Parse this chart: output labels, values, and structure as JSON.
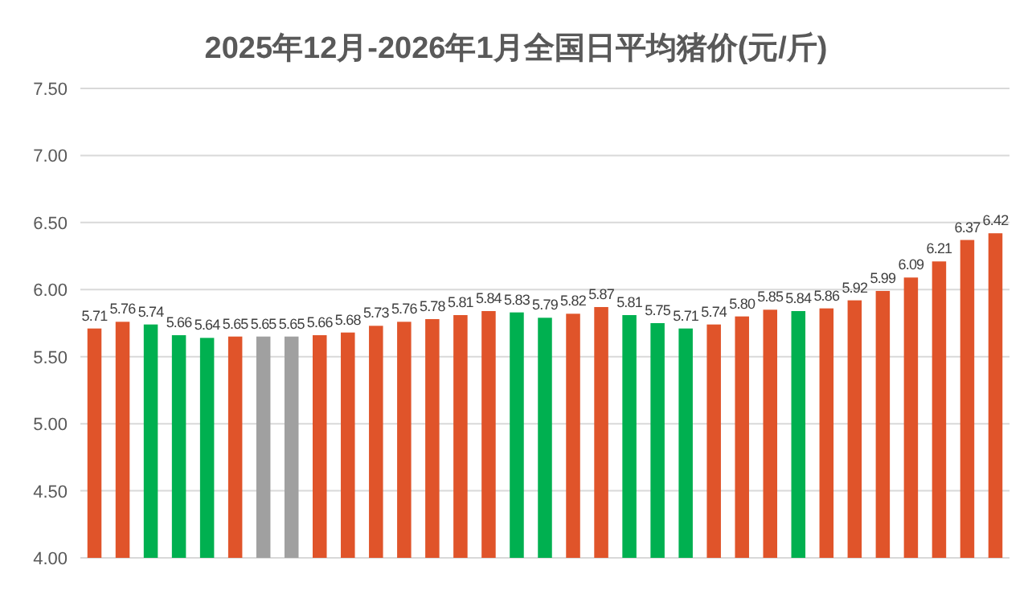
{
  "chart_data": {
    "type": "bar",
    "title": "2025年12月-2026年1月全国日平均猪价(元/斤)",
    "categories": [
      null,
      null,
      null,
      null,
      null,
      null,
      null,
      null,
      null,
      null,
      null,
      null,
      null,
      null,
      null,
      null,
      null,
      null,
      null,
      null,
      null,
      null,
      null,
      null,
      null,
      null,
      null,
      null,
      null,
      null,
      null,
      null,
      null
    ],
    "values": [
      5.71,
      5.76,
      5.74,
      5.66,
      5.64,
      5.65,
      5.65,
      5.65,
      5.66,
      5.68,
      5.73,
      5.76,
      5.78,
      5.81,
      5.84,
      5.83,
      5.79,
      5.82,
      5.87,
      5.81,
      5.75,
      5.71,
      5.74,
      5.8,
      5.85,
      5.84,
      5.86,
      5.92,
      5.99,
      6.09,
      6.21,
      6.37,
      6.42
    ],
    "colors": [
      "#e0542a",
      "#e0542a",
      "#00b050",
      "#00b050",
      "#00b050",
      "#e0542a",
      "#a0a0a0",
      "#a0a0a0",
      "#e0542a",
      "#e0542a",
      "#e0542a",
      "#e0542a",
      "#e0542a",
      "#e0542a",
      "#e0542a",
      "#00b050",
      "#00b050",
      "#e0542a",
      "#e0542a",
      "#00b050",
      "#00b050",
      "#00b050",
      "#e0542a",
      "#e0542a",
      "#e0542a",
      "#00b050",
      "#e0542a",
      "#e0542a",
      "#e0542a",
      "#e0542a",
      "#e0542a",
      "#e0542a",
      "#e0542a"
    ],
    "ylim": [
      4.0,
      7.5
    ],
    "yticks": [
      {
        "value": 4.0,
        "label": "4.00"
      },
      {
        "value": 4.5,
        "label": "4.50"
      },
      {
        "value": 5.0,
        "label": "5.00"
      },
      {
        "value": 5.5,
        "label": "5.50"
      },
      {
        "value": 6.0,
        "label": "6.00"
      },
      {
        "value": 6.5,
        "label": "6.50"
      },
      {
        "value": 7.0,
        "label": "7.00"
      },
      {
        "value": 7.5,
        "label": "7.50"
      }
    ],
    "value_labels": [
      "5.71",
      "5.76",
      "5.74",
      "5.66",
      "5.64",
      "5.65",
      "5.65",
      "5.65",
      "5.66",
      "5.68",
      "5.73",
      "5.76",
      "5.78",
      "5.81",
      "5.84",
      "5.83",
      "5.79",
      "5.82",
      "5.87",
      "5.81",
      "5.75",
      "5.71",
      "5.74",
      "5.80",
      "5.85",
      "5.84",
      "5.86",
      "5.92",
      "5.99",
      "6.09",
      "6.21",
      "6.37",
      "6.42"
    ],
    "grid": "y"
  }
}
